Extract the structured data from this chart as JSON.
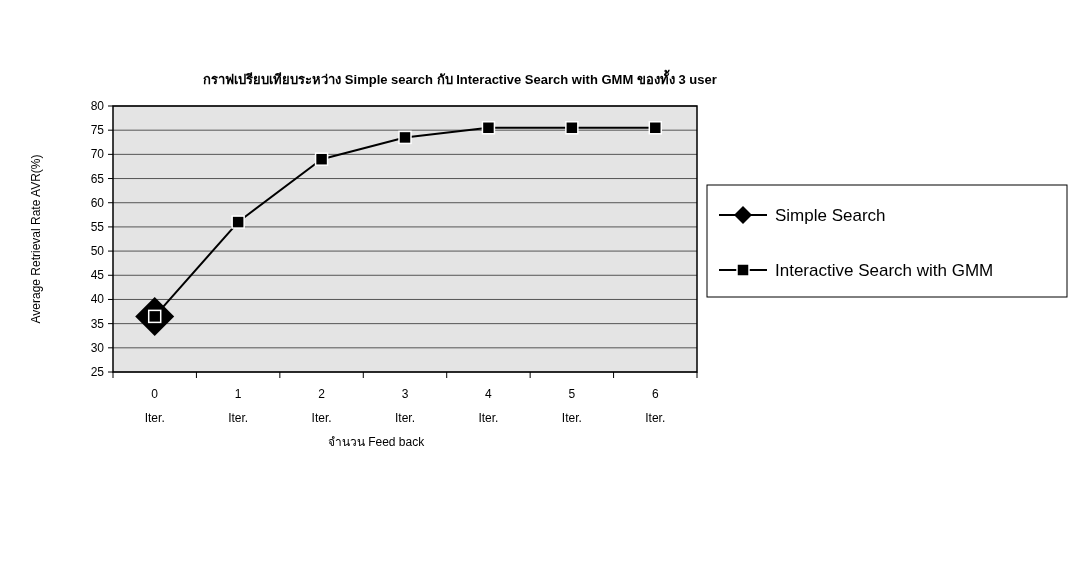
{
  "chart_data": {
    "type": "line",
    "title": "กราฟเปรียบเทียบระหว่าง Simple search กับ Interactive Search with GMM ของทั้ง 3 user",
    "xlabel": "จำนวน Feed back",
    "ylabel": "Average Retrieval Rate AVR(%)",
    "categories": [
      "0\nIter.",
      "1\nIter.",
      "2\nIter.",
      "3\nIter.",
      "4\nIter.",
      "5\nIter.",
      "6\nIter."
    ],
    "series": [
      {
        "name": "Simple Search",
        "color": "#000000",
        "marker": "diamond",
        "values": [
          36.5,
          null,
          null,
          null,
          null,
          null,
          null
        ]
      },
      {
        "name": "Interactive Search with GMM",
        "color": "#000000",
        "marker": "square",
        "values": [
          36.5,
          56,
          69,
          73.5,
          75.5,
          75.5,
          75.5
        ]
      }
    ],
    "ylim": [
      25,
      80
    ],
    "yticks": [
      25,
      30,
      35,
      40,
      45,
      50,
      55,
      60,
      65,
      70,
      75,
      80
    ],
    "grid": "y",
    "legend": "right",
    "line_style": "solid"
  }
}
